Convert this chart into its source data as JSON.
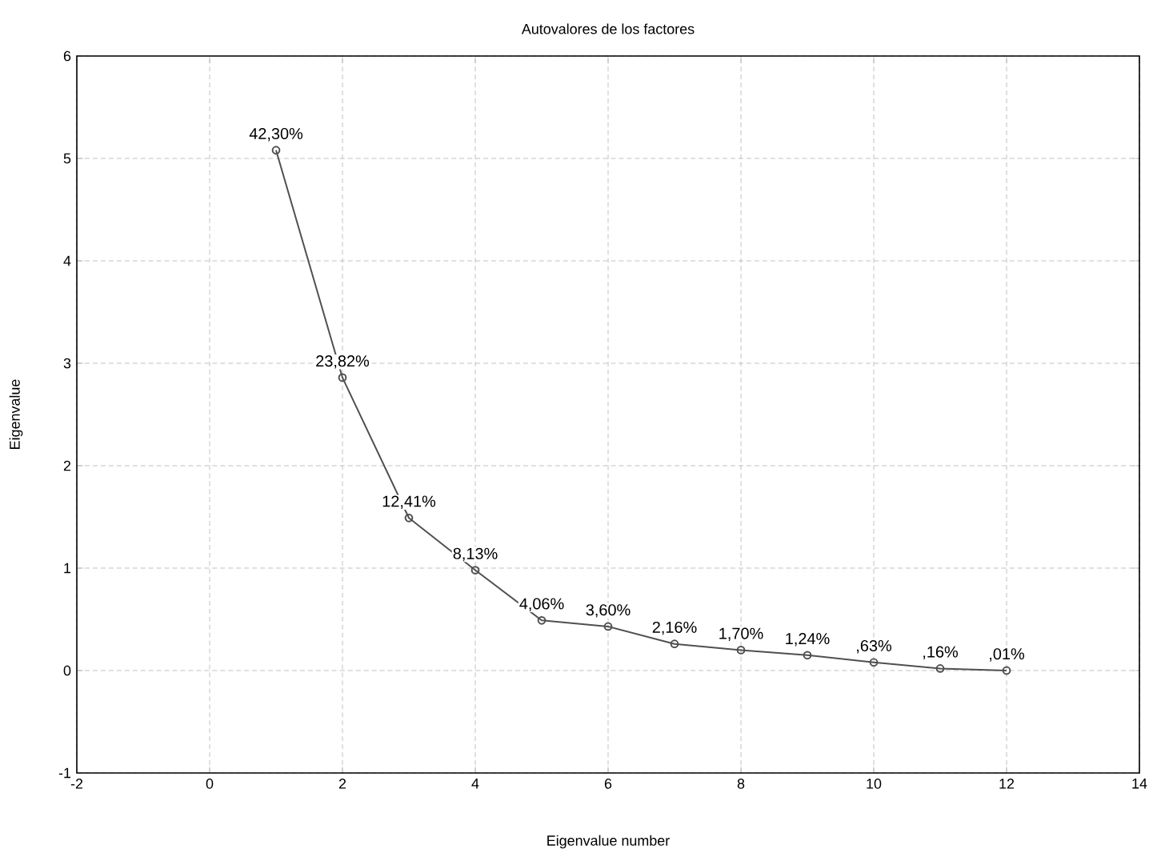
{
  "chart_data": {
    "type": "line",
    "title": "Autovalores de los factores",
    "xlabel": "Eigenvalue number",
    "ylabel": "Eigenvalue",
    "x": [
      1,
      2,
      3,
      4,
      5,
      6,
      7,
      8,
      9,
      10,
      11,
      12
    ],
    "series": [
      {
        "color": "#505050",
        "values": [
          5.08,
          2.86,
          1.49,
          0.98,
          0.49,
          0.43,
          0.26,
          0.2,
          0.15,
          0.08,
          0.02,
          0.0
        ]
      }
    ],
    "annotations": [
      {
        "text": "42,30%",
        "x": 1,
        "y": 5.08
      },
      {
        "text": "23,82%",
        "x": 2,
        "y": 2.86
      },
      {
        "text": "12,41%",
        "x": 3,
        "y": 1.49
      },
      {
        "text": "8,13%",
        "x": 4,
        "y": 0.98
      },
      {
        "text": "4,06%",
        "x": 5,
        "y": 0.49
      },
      {
        "text": "3,60%",
        "x": 6,
        "y": 0.43
      },
      {
        "text": "2,16%",
        "x": 7,
        "y": 0.26
      },
      {
        "text": "1,70%",
        "x": 8,
        "y": 0.2
      },
      {
        "text": "1,24%",
        "x": 9,
        "y": 0.15
      },
      {
        "text": ",63%",
        "x": 10,
        "y": 0.08
      },
      {
        "text": ",16%",
        "x": 11,
        "y": 0.02
      },
      {
        "text": ",01%",
        "x": 12,
        "y": 0.0
      }
    ],
    "xlim": [
      -2,
      14
    ],
    "ylim": [
      -1,
      6
    ],
    "xticks": [
      -2,
      0,
      2,
      4,
      6,
      8,
      10,
      12,
      14
    ],
    "yticks": [
      -1,
      0,
      1,
      2,
      3,
      4,
      5,
      6
    ],
    "grid": true,
    "marker": "circle",
    "line_style": "solid"
  }
}
